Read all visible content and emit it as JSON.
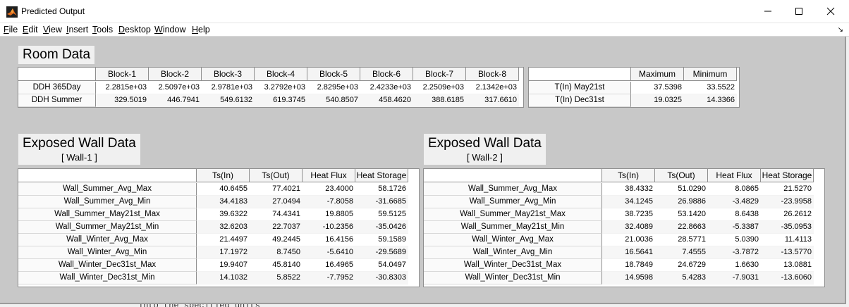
{
  "window": {
    "title": "Predicted Output",
    "min_icon": "minimize-icon",
    "max_icon": "maximize-icon",
    "close_icon": "close-icon"
  },
  "menu": [
    {
      "label": "File",
      "u": "F",
      "rest": "ile"
    },
    {
      "label": "Edit",
      "u": "E",
      "rest": "dit"
    },
    {
      "label": "View",
      "u": "V",
      "rest": "iew"
    },
    {
      "label": "Insert",
      "u": "I",
      "rest": "nsert"
    },
    {
      "label": "Tools",
      "u": "T",
      "rest": "ools"
    },
    {
      "label": "Desktop",
      "u": "D",
      "rest": "esktop"
    },
    {
      "label": "Window",
      "u": "W",
      "rest": "indow"
    },
    {
      "label": "Help",
      "u": "H",
      "rest": "elp"
    }
  ],
  "room": {
    "title": "Room Data",
    "blocks_table": {
      "headers": [
        "Block-1",
        "Block-2",
        "Block-3",
        "Block-4",
        "Block-5",
        "Block-6",
        "Block-7",
        "Block-8"
      ],
      "rows": [
        {
          "label": "DDH 365Day",
          "values": [
            "2.2815e+03",
            "2.5097e+03",
            "2.9781e+03",
            "3.2792e+03",
            "2.8295e+03",
            "2.4233e+03",
            "2.2509e+03",
            "2.1342e+03"
          ]
        },
        {
          "label": "DDH Summer",
          "values": [
            "329.5019",
            "446.7941",
            "549.6132",
            "619.3745",
            "540.8507",
            "458.4620",
            "388.6185",
            "317.6610"
          ]
        }
      ]
    },
    "temp_table": {
      "headers": [
        "Maximum",
        "Minimum"
      ],
      "rows": [
        {
          "label": "T(In) May21st",
          "values": [
            "37.5398",
            "33.5522"
          ]
        },
        {
          "label": "T(In) Dec31st",
          "values": [
            "19.0325",
            "14.3366"
          ]
        }
      ]
    }
  },
  "wall1": {
    "title": "Exposed Wall Data",
    "subtitle": "[ Wall-1 ]",
    "headers": [
      "Ts(In)",
      "Ts(Out)",
      "Heat Flux",
      "Heat Storage"
    ],
    "rows": [
      {
        "label": "Wall_Summer_Avg_Max",
        "values": [
          "40.6455",
          "77.4021",
          "23.4000",
          "58.1726"
        ]
      },
      {
        "label": "Wall_Summer_Avg_Min",
        "values": [
          "34.4183",
          "27.0494",
          "-7.8058",
          "-31.6685"
        ]
      },
      {
        "label": "Wall_Summer_May21st_Max",
        "values": [
          "39.6322",
          "74.4341",
          "19.8805",
          "59.5125"
        ]
      },
      {
        "label": "Wall_Summer_May21st_Min",
        "values": [
          "32.6203",
          "22.7037",
          "-10.2356",
          "-35.0426"
        ]
      },
      {
        "label": "Wall_Winter_Avg_Max",
        "values": [
          "21.4497",
          "49.2445",
          "16.4156",
          "59.1589"
        ]
      },
      {
        "label": "Wall_Winter_Avg_Min",
        "values": [
          "17.1972",
          "8.7450",
          "-5.6410",
          "-29.5689"
        ]
      },
      {
        "label": "Wall_Winter_Dec31st_Max",
        "values": [
          "19.9407",
          "45.8140",
          "16.4965",
          "54.0497"
        ]
      },
      {
        "label": "Wall_Winter_Dec31st_Min",
        "values": [
          "14.1032",
          "5.8522",
          "-7.7952",
          "-30.8303"
        ]
      }
    ]
  },
  "wall2": {
    "title": "Exposed Wall Data",
    "subtitle": "[ Wall-2 ]",
    "headers": [
      "Ts(In)",
      "Ts(Out)",
      "Heat Flux",
      "Heat Storage"
    ],
    "rows": [
      {
        "label": "Wall_Summer_Avg_Max",
        "values": [
          "38.4332",
          "51.0290",
          "8.0865",
          "21.5270"
        ]
      },
      {
        "label": "Wall_Summer_Avg_Min",
        "values": [
          "34.1245",
          "26.9886",
          "-3.4829",
          "-23.9958"
        ]
      },
      {
        "label": "Wall_Summer_May21st_Max",
        "values": [
          "38.7235",
          "53.1420",
          "8.6438",
          "26.2612"
        ]
      },
      {
        "label": "Wall_Summer_May21st_Min",
        "values": [
          "32.4089",
          "22.8663",
          "-5.3387",
          "-35.0953"
        ]
      },
      {
        "label": "Wall_Winter_Avg_Max",
        "values": [
          "21.0036",
          "28.5771",
          "5.0390",
          "11.4113"
        ]
      },
      {
        "label": "Wall_Winter_Avg_Min",
        "values": [
          "16.5641",
          "7.4555",
          "-3.7872",
          "-13.5770"
        ]
      },
      {
        "label": "Wall_Winter_Dec31st_Max",
        "values": [
          "18.7849",
          "24.6729",
          "1.6630",
          "13.0881"
        ]
      },
      {
        "label": "Wall_Winter_Dec31st_Min",
        "values": [
          "14.9598",
          "5.4283",
          "-7.9031",
          "-13.6060"
        ]
      }
    ]
  },
  "background_text": "into the specified units"
}
